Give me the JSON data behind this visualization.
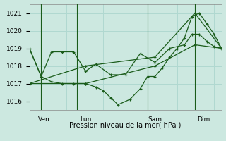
{
  "title": "Pression niveau de la mer( hPa )",
  "background_color": "#cce8e0",
  "grid_color": "#b0d8d0",
  "line_color": "#1a5c1a",
  "ylim": [
    1015.5,
    1021.5
  ],
  "yticks": [
    1016,
    1017,
    1018,
    1019,
    1020,
    1021
  ],
  "xlim": [
    0,
    13
  ],
  "x_day_labels": [
    {
      "label": "Ven",
      "x": 1.0
    },
    {
      "label": "Lun",
      "x": 3.8
    },
    {
      "label": "Sam",
      "x": 8.5
    },
    {
      "label": "Dim",
      "x": 11.8
    }
  ],
  "x_day_vlines": [
    0.8,
    3.2,
    8.0,
    11.2
  ],
  "series": [
    {
      "x": [
        0.0,
        0.8,
        1.5,
        2.2,
        3.0,
        3.8,
        4.5,
        5.5,
        6.5,
        7.5,
        8.5,
        9.5,
        10.5,
        11.0,
        11.5,
        12.0,
        12.5,
        13.0
      ],
      "y": [
        1019.0,
        1017.4,
        1018.8,
        1018.8,
        1018.8,
        1017.7,
        1018.1,
        1017.5,
        1017.5,
        1018.7,
        1018.2,
        1019.0,
        1019.2,
        1019.8,
        1019.8,
        1019.4,
        1019.1,
        1019.0
      ]
    },
    {
      "x": [
        0.0,
        0.8,
        1.5,
        2.2,
        3.0,
        3.8,
        4.5,
        5.0,
        5.5,
        6.0,
        6.8,
        7.5,
        8.0,
        8.5,
        9.0,
        9.5,
        10.0,
        10.5,
        11.0,
        11.5,
        12.0,
        12.5,
        13.0
      ],
      "y": [
        1019.0,
        1017.4,
        1017.1,
        1017.0,
        1017.0,
        1017.0,
        1016.8,
        1016.6,
        1016.2,
        1015.8,
        1016.1,
        1016.7,
        1017.4,
        1017.4,
        1017.9,
        1018.5,
        1019.0,
        1019.6,
        1020.8,
        1021.0,
        1020.4,
        1019.8,
        1019.0
      ]
    },
    {
      "x": [
        0.0,
        3.8,
        8.5,
        11.2,
        13.0
      ],
      "y": [
        1017.0,
        1017.0,
        1018.0,
        1019.2,
        1019.0
      ]
    },
    {
      "x": [
        0.0,
        3.8,
        8.5,
        11.2,
        13.0
      ],
      "y": [
        1017.0,
        1018.0,
        1018.5,
        1021.0,
        1019.0
      ]
    }
  ]
}
